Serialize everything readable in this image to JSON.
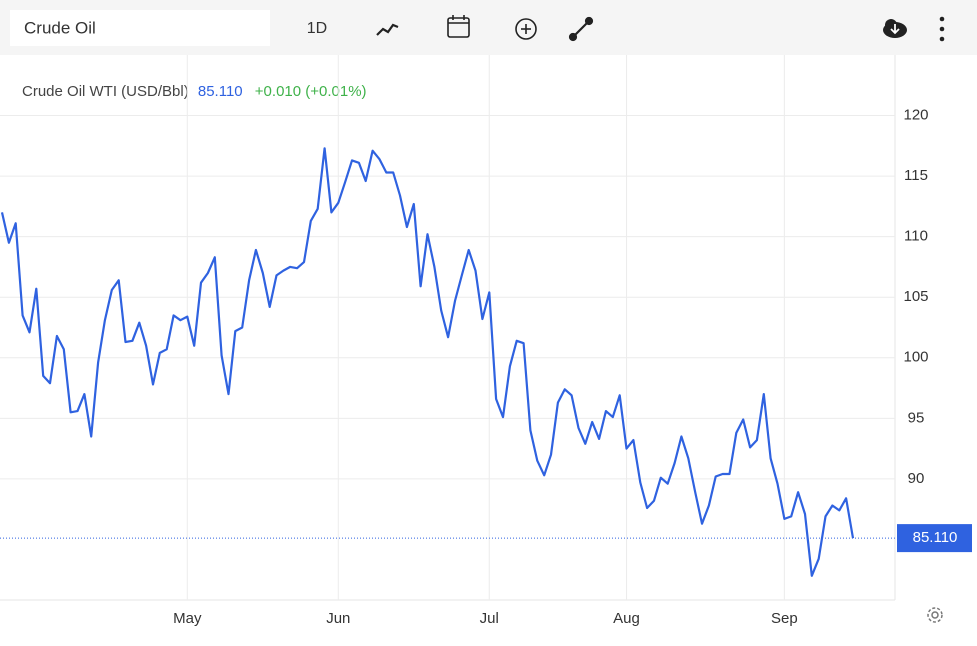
{
  "toolbar": {
    "search": "Crude Oil",
    "interval": "1D"
  },
  "chart_data": {
    "type": "line",
    "title": "Crude Oil WTI (USD/Bbl)",
    "last_price": {
      "value": 85.11,
      "label": "85.110"
    },
    "change": "+0.010 (+0.01%)",
    "categories": [
      null,
      null,
      null,
      null,
      null,
      null,
      null,
      null,
      null,
      null,
      null,
      null,
      null,
      null,
      null,
      null,
      null,
      null,
      null,
      null,
      null,
      null,
      null,
      null,
      null,
      null,
      null,
      "May",
      null,
      null,
      null,
      null,
      null,
      null,
      null,
      null,
      null,
      null,
      null,
      null,
      null,
      null,
      null,
      null,
      null,
      null,
      null,
      null,
      null,
      "Jun",
      null,
      null,
      null,
      null,
      null,
      null,
      null,
      null,
      null,
      null,
      null,
      null,
      null,
      null,
      null,
      null,
      null,
      null,
      null,
      null,
      null,
      "Jul",
      null,
      null,
      null,
      null,
      null,
      null,
      null,
      null,
      null,
      null,
      null,
      null,
      null,
      null,
      null,
      null,
      null,
      null,
      null,
      "Aug",
      null,
      null,
      null,
      null,
      null,
      null,
      null,
      null,
      null,
      null,
      null,
      null,
      null,
      null,
      null,
      null,
      null,
      null,
      null,
      null,
      null,
      null,
      "Sep",
      null,
      null,
      null,
      null,
      null,
      null,
      null,
      null,
      null,
      null
    ],
    "series": [
      {
        "name": "Crude Oil WTI",
        "color": "#2f62e0",
        "values": [
          112.0,
          109.5,
          111.1,
          103.5,
          102.1,
          105.7,
          98.5,
          97.9,
          101.8,
          100.7,
          95.5,
          95.6,
          97.0,
          93.5,
          99.6,
          103.1,
          105.6,
          106.4,
          101.3,
          101.4,
          102.9,
          101.0,
          97.8,
          100.4,
          100.7,
          103.5,
          103.1,
          103.4,
          101.0,
          106.2,
          107.0,
          108.3,
          100.2,
          97.0,
          102.2,
          102.5,
          106.4,
          108.9,
          107.0,
          104.2,
          106.8,
          107.2,
          107.5,
          107.4,
          107.9,
          111.3,
          112.3,
          117.3,
          112.0,
          112.8,
          114.5,
          116.3,
          116.1,
          114.6,
          117.1,
          116.4,
          115.3,
          115.3,
          113.4,
          110.8,
          112.7,
          105.9,
          110.2,
          107.5,
          103.9,
          101.7,
          104.7,
          106.8,
          108.9,
          107.2,
          103.2,
          105.4,
          96.6,
          95.1,
          99.3,
          101.4,
          101.2,
          94.0,
          91.5,
          90.3,
          92.0,
          96.3,
          97.4,
          96.9,
          94.2,
          92.9,
          94.7,
          93.3,
          95.6,
          95.1,
          96.9,
          92.5,
          93.2,
          89.7,
          87.6,
          88.2,
          90.1,
          89.6,
          91.3,
          93.5,
          91.7,
          88.9,
          86.3,
          87.8,
          90.2,
          90.4,
          90.4,
          93.8,
          94.9,
          92.6,
          93.2,
          97.0,
          91.7,
          89.6,
          86.7,
          86.9,
          88.9,
          87.1,
          82.0,
          83.4,
          86.9,
          87.8,
          87.4,
          88.4,
          85.1
        ]
      }
    ],
    "ylim": [
      80,
      125
    ],
    "yticks": [
      90,
      95,
      100,
      105,
      110,
      115,
      120
    ],
    "grid": true
  }
}
